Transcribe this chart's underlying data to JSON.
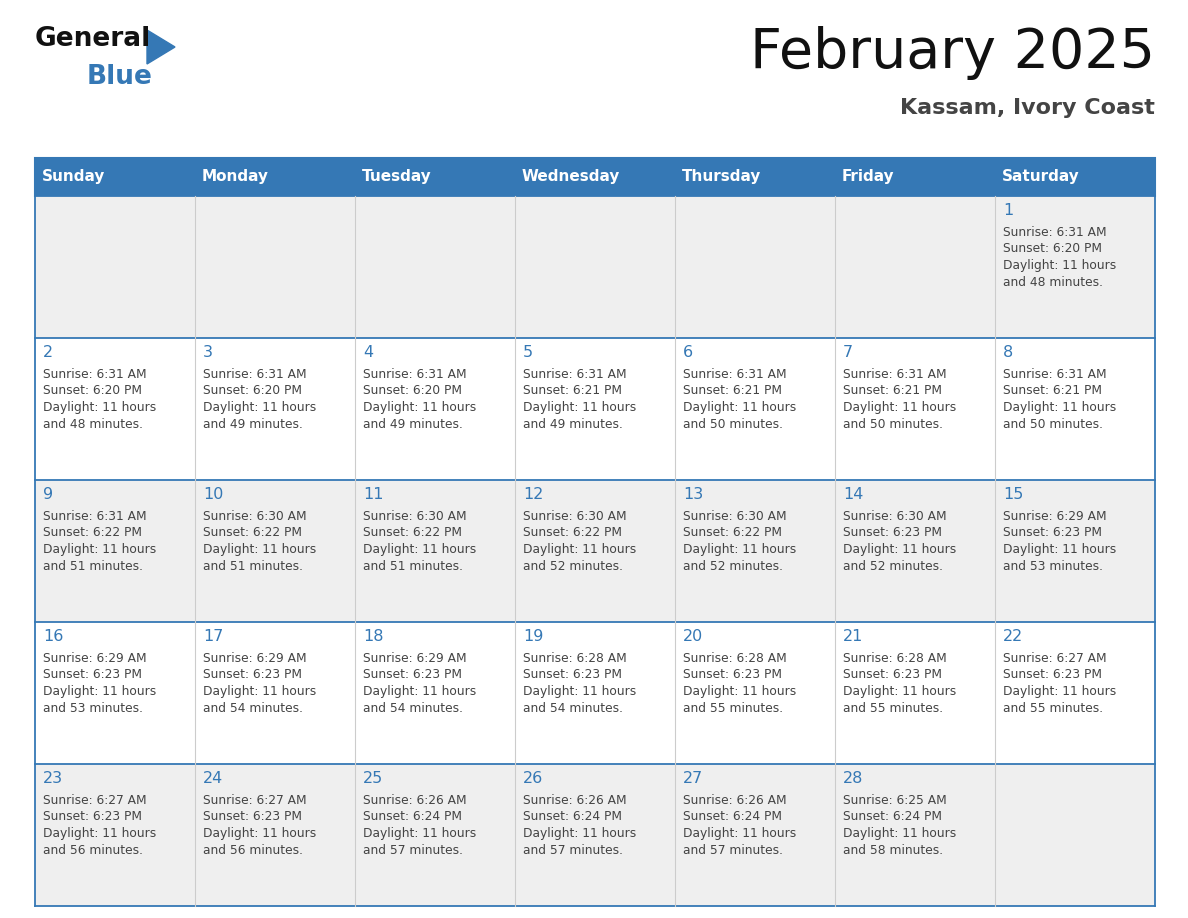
{
  "title": "February 2025",
  "subtitle": "Kassam, Ivory Coast",
  "days_of_week": [
    "Sunday",
    "Monday",
    "Tuesday",
    "Wednesday",
    "Thursday",
    "Friday",
    "Saturday"
  ],
  "header_bg_color": "#3578b5",
  "header_text_color": "#ffffff",
  "cell_bg_color_light": "#efefef",
  "cell_bg_color_white": "#ffffff",
  "day_number_color": "#3578b5",
  "info_text_color": "#444444",
  "border_color": "#3578b5",
  "col_divider_color": "#cccccc",
  "title_color": "#111111",
  "subtitle_color": "#444444",
  "logo_general_color": "#111111",
  "logo_blue_color": "#3578b5",
  "calendar_data": [
    {
      "day": 1,
      "row": 0,
      "col": 6,
      "sunrise": "6:31 AM",
      "sunset": "6:20 PM",
      "daylight_line1": "Daylight: 11 hours",
      "daylight_line2": "and 48 minutes."
    },
    {
      "day": 2,
      "row": 1,
      "col": 0,
      "sunrise": "6:31 AM",
      "sunset": "6:20 PM",
      "daylight_line1": "Daylight: 11 hours",
      "daylight_line2": "and 48 minutes."
    },
    {
      "day": 3,
      "row": 1,
      "col": 1,
      "sunrise": "6:31 AM",
      "sunset": "6:20 PM",
      "daylight_line1": "Daylight: 11 hours",
      "daylight_line2": "and 49 minutes."
    },
    {
      "day": 4,
      "row": 1,
      "col": 2,
      "sunrise": "6:31 AM",
      "sunset": "6:20 PM",
      "daylight_line1": "Daylight: 11 hours",
      "daylight_line2": "and 49 minutes."
    },
    {
      "day": 5,
      "row": 1,
      "col": 3,
      "sunrise": "6:31 AM",
      "sunset": "6:21 PM",
      "daylight_line1": "Daylight: 11 hours",
      "daylight_line2": "and 49 minutes."
    },
    {
      "day": 6,
      "row": 1,
      "col": 4,
      "sunrise": "6:31 AM",
      "sunset": "6:21 PM",
      "daylight_line1": "Daylight: 11 hours",
      "daylight_line2": "and 50 minutes."
    },
    {
      "day": 7,
      "row": 1,
      "col": 5,
      "sunrise": "6:31 AM",
      "sunset": "6:21 PM",
      "daylight_line1": "Daylight: 11 hours",
      "daylight_line2": "and 50 minutes."
    },
    {
      "day": 8,
      "row": 1,
      "col": 6,
      "sunrise": "6:31 AM",
      "sunset": "6:21 PM",
      "daylight_line1": "Daylight: 11 hours",
      "daylight_line2": "and 50 minutes."
    },
    {
      "day": 9,
      "row": 2,
      "col": 0,
      "sunrise": "6:31 AM",
      "sunset": "6:22 PM",
      "daylight_line1": "Daylight: 11 hours",
      "daylight_line2": "and 51 minutes."
    },
    {
      "day": 10,
      "row": 2,
      "col": 1,
      "sunrise": "6:30 AM",
      "sunset": "6:22 PM",
      "daylight_line1": "Daylight: 11 hours",
      "daylight_line2": "and 51 minutes."
    },
    {
      "day": 11,
      "row": 2,
      "col": 2,
      "sunrise": "6:30 AM",
      "sunset": "6:22 PM",
      "daylight_line1": "Daylight: 11 hours",
      "daylight_line2": "and 51 minutes."
    },
    {
      "day": 12,
      "row": 2,
      "col": 3,
      "sunrise": "6:30 AM",
      "sunset": "6:22 PM",
      "daylight_line1": "Daylight: 11 hours",
      "daylight_line2": "and 52 minutes."
    },
    {
      "day": 13,
      "row": 2,
      "col": 4,
      "sunrise": "6:30 AM",
      "sunset": "6:22 PM",
      "daylight_line1": "Daylight: 11 hours",
      "daylight_line2": "and 52 minutes."
    },
    {
      "day": 14,
      "row": 2,
      "col": 5,
      "sunrise": "6:30 AM",
      "sunset": "6:23 PM",
      "daylight_line1": "Daylight: 11 hours",
      "daylight_line2": "and 52 minutes."
    },
    {
      "day": 15,
      "row": 2,
      "col": 6,
      "sunrise": "6:29 AM",
      "sunset": "6:23 PM",
      "daylight_line1": "Daylight: 11 hours",
      "daylight_line2": "and 53 minutes."
    },
    {
      "day": 16,
      "row": 3,
      "col": 0,
      "sunrise": "6:29 AM",
      "sunset": "6:23 PM",
      "daylight_line1": "Daylight: 11 hours",
      "daylight_line2": "and 53 minutes."
    },
    {
      "day": 17,
      "row": 3,
      "col": 1,
      "sunrise": "6:29 AM",
      "sunset": "6:23 PM",
      "daylight_line1": "Daylight: 11 hours",
      "daylight_line2": "and 54 minutes."
    },
    {
      "day": 18,
      "row": 3,
      "col": 2,
      "sunrise": "6:29 AM",
      "sunset": "6:23 PM",
      "daylight_line1": "Daylight: 11 hours",
      "daylight_line2": "and 54 minutes."
    },
    {
      "day": 19,
      "row": 3,
      "col": 3,
      "sunrise": "6:28 AM",
      "sunset": "6:23 PM",
      "daylight_line1": "Daylight: 11 hours",
      "daylight_line2": "and 54 minutes."
    },
    {
      "day": 20,
      "row": 3,
      "col": 4,
      "sunrise": "6:28 AM",
      "sunset": "6:23 PM",
      "daylight_line1": "Daylight: 11 hours",
      "daylight_line2": "and 55 minutes."
    },
    {
      "day": 21,
      "row": 3,
      "col": 5,
      "sunrise": "6:28 AM",
      "sunset": "6:23 PM",
      "daylight_line1": "Daylight: 11 hours",
      "daylight_line2": "and 55 minutes."
    },
    {
      "day": 22,
      "row": 3,
      "col": 6,
      "sunrise": "6:27 AM",
      "sunset": "6:23 PM",
      "daylight_line1": "Daylight: 11 hours",
      "daylight_line2": "and 55 minutes."
    },
    {
      "day": 23,
      "row": 4,
      "col": 0,
      "sunrise": "6:27 AM",
      "sunset": "6:23 PM",
      "daylight_line1": "Daylight: 11 hours",
      "daylight_line2": "and 56 minutes."
    },
    {
      "day": 24,
      "row": 4,
      "col": 1,
      "sunrise": "6:27 AM",
      "sunset": "6:23 PM",
      "daylight_line1": "Daylight: 11 hours",
      "daylight_line2": "and 56 minutes."
    },
    {
      "day": 25,
      "row": 4,
      "col": 2,
      "sunrise": "6:26 AM",
      "sunset": "6:24 PM",
      "daylight_line1": "Daylight: 11 hours",
      "daylight_line2": "and 57 minutes."
    },
    {
      "day": 26,
      "row": 4,
      "col": 3,
      "sunrise": "6:26 AM",
      "sunset": "6:24 PM",
      "daylight_line1": "Daylight: 11 hours",
      "daylight_line2": "and 57 minutes."
    },
    {
      "day": 27,
      "row": 4,
      "col": 4,
      "sunrise": "6:26 AM",
      "sunset": "6:24 PM",
      "daylight_line1": "Daylight: 11 hours",
      "daylight_line2": "and 57 minutes."
    },
    {
      "day": 28,
      "row": 4,
      "col": 5,
      "sunrise": "6:25 AM",
      "sunset": "6:24 PM",
      "daylight_line1": "Daylight: 11 hours",
      "daylight_line2": "and 58 minutes."
    }
  ],
  "num_rows": 5,
  "num_cols": 7
}
